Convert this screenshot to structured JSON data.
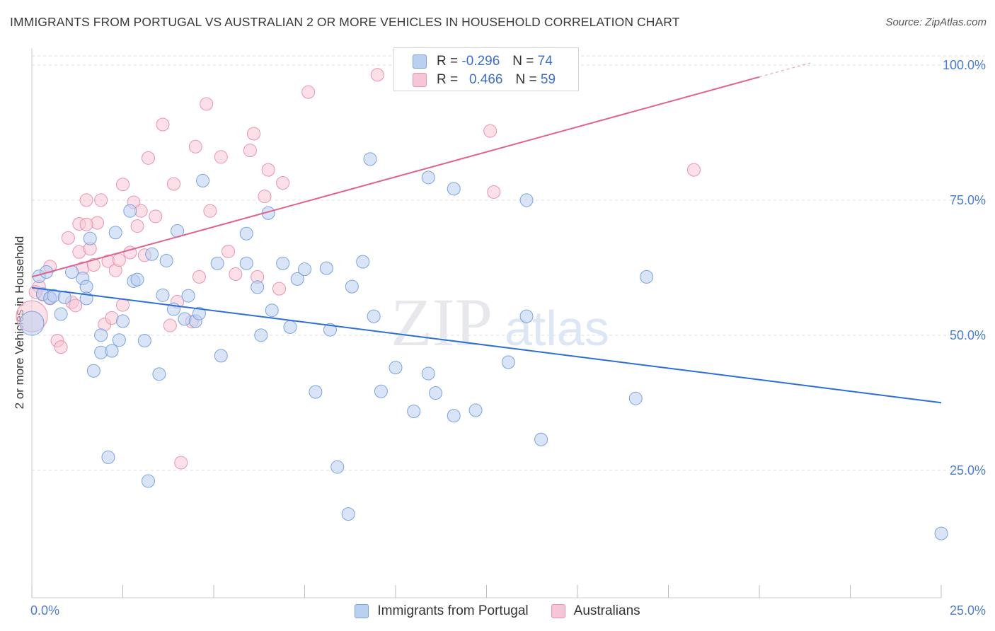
{
  "header": {
    "title": "IMMIGRANTS FROM PORTUGAL VS AUSTRALIAN 2 OR MORE VEHICLES IN HOUSEHOLD CORRELATION CHART",
    "source": "Source: ZipAtlas.com"
  },
  "watermark": {
    "zip": "ZIP",
    "atlas": "atlas"
  },
  "legend_top": {
    "rows": [
      {
        "r_label": "R =",
        "r_value": "-0.296",
        "n_label": "N =",
        "n_value": "74"
      },
      {
        "r_label": "R =",
        "r_value": "0.466",
        "n_label": "N =",
        "n_value": "59"
      }
    ]
  },
  "legend_bottom": {
    "items": [
      "Immigrants from Portugal",
      "Australians"
    ]
  },
  "colors": {
    "blue_fill": "#b9d0f1",
    "blue_stroke": "#7aa3e0",
    "blue_line": "#2e6fd4",
    "pink_fill": "#f7c6d6",
    "pink_stroke": "#ea93b0",
    "pink_line": "#e0628f",
    "tick_text": "#4a7ecf",
    "grid": "#dddddd"
  },
  "chart_data": {
    "type": "scatter",
    "title": "IMMIGRANTS FROM PORTUGAL VS AUSTRALIAN 2 OR MORE VEHICLES IN HOUSEHOLD CORRELATION CHART",
    "xlabel": "",
    "ylabel": "2 or more Vehicles in Household",
    "xlim": [
      0,
      25
    ],
    "ylim": [
      1.4,
      101.7
    ],
    "x_tick_labels": [
      "0.0%",
      "25.0%"
    ],
    "y_ticks": [
      25,
      50,
      75,
      100
    ],
    "y_tick_labels": [
      "25.0%",
      "50.0%",
      "75.0%",
      "100.0%"
    ],
    "grid": true,
    "legend": "top-center",
    "series": [
      {
        "name": "Immigrants from Portugal",
        "color": "#b9d0f1",
        "trend": {
          "x": [
            0,
            25
          ],
          "y": [
            58.8,
            37.5
          ]
        },
        "points": [
          [
            0.0,
            52.2
          ],
          [
            0.2,
            60.9
          ],
          [
            0.3,
            57.6
          ],
          [
            0.4,
            61.7
          ],
          [
            0.5,
            56.9
          ],
          [
            0.6,
            57.3
          ],
          [
            0.8,
            53.9
          ],
          [
            0.9,
            57.0
          ],
          [
            1.1,
            61.7
          ],
          [
            1.4,
            60.5
          ],
          [
            1.5,
            59.0
          ],
          [
            1.5,
            56.8
          ],
          [
            1.6,
            67.9
          ],
          [
            1.7,
            43.4
          ],
          [
            1.9,
            50.0
          ],
          [
            1.9,
            46.8
          ],
          [
            2.1,
            27.4
          ],
          [
            2.2,
            47.1
          ],
          [
            2.3,
            69.0
          ],
          [
            2.4,
            49.1
          ],
          [
            2.5,
            52.6
          ],
          [
            2.7,
            73.0
          ],
          [
            2.8,
            60.0
          ],
          [
            2.9,
            60.3
          ],
          [
            3.1,
            49.0
          ],
          [
            3.2,
            23.0
          ],
          [
            3.3,
            65.0
          ],
          [
            3.5,
            42.8
          ],
          [
            3.6,
            57.4
          ],
          [
            3.7,
            63.8
          ],
          [
            3.9,
            54.8
          ],
          [
            4.0,
            69.3
          ],
          [
            4.2,
            53.0
          ],
          [
            4.3,
            57.3
          ],
          [
            4.5,
            52.6
          ],
          [
            4.6,
            54.0
          ],
          [
            4.7,
            78.6
          ],
          [
            5.1,
            63.3
          ],
          [
            5.2,
            46.2
          ],
          [
            5.9,
            68.8
          ],
          [
            5.9,
            63.3
          ],
          [
            6.2,
            58.9
          ],
          [
            6.3,
            50.0
          ],
          [
            6.5,
            72.6
          ],
          [
            6.6,
            54.6
          ],
          [
            6.9,
            63.3
          ],
          [
            7.1,
            51.5
          ],
          [
            7.3,
            60.4
          ],
          [
            7.5,
            62.2
          ],
          [
            7.8,
            39.5
          ],
          [
            8.1,
            62.4
          ],
          [
            8.2,
            51.0
          ],
          [
            8.4,
            25.6
          ],
          [
            8.7,
            16.9
          ],
          [
            8.8,
            59.0
          ],
          [
            9.1,
            63.6
          ],
          [
            9.3,
            82.6
          ],
          [
            9.4,
            53.5
          ],
          [
            9.6,
            39.6
          ],
          [
            10.0,
            44.0
          ],
          [
            10.5,
            35.9
          ],
          [
            10.9,
            79.2
          ],
          [
            10.9,
            42.9
          ],
          [
            11.1,
            39.3
          ],
          [
            11.6,
            77.1
          ],
          [
            11.6,
            35.1
          ],
          [
            12.2,
            36.1
          ],
          [
            13.1,
            45.0
          ],
          [
            13.6,
            75.0
          ],
          [
            13.6,
            53.5
          ],
          [
            14.0,
            30.7
          ],
          [
            16.6,
            38.3
          ],
          [
            16.9,
            60.8
          ],
          [
            25.0,
            13.3
          ]
        ]
      },
      {
        "name": "Australians",
        "color": "#f7c6d6",
        "trend": {
          "x": [
            0,
            20
          ],
          "y": [
            60.8,
            97.8
          ]
        },
        "points": [
          [
            0.0,
            53.5
          ],
          [
            0.2,
            59.0
          ],
          [
            0.3,
            57.5
          ],
          [
            0.5,
            62.7
          ],
          [
            0.5,
            56.8
          ],
          [
            0.7,
            49.0
          ],
          [
            0.8,
            47.8
          ],
          [
            1.0,
            68.0
          ],
          [
            1.1,
            56.1
          ],
          [
            1.2,
            55.5
          ],
          [
            1.3,
            65.4
          ],
          [
            1.3,
            70.6
          ],
          [
            1.4,
            62.4
          ],
          [
            1.5,
            75.0
          ],
          [
            1.6,
            66.0
          ],
          [
            1.7,
            63.0
          ],
          [
            1.8,
            70.8
          ],
          [
            1.9,
            75.0
          ],
          [
            2.0,
            52.0
          ],
          [
            2.1,
            63.7
          ],
          [
            2.2,
            53.2
          ],
          [
            2.3,
            62.0
          ],
          [
            2.4,
            63.9
          ],
          [
            2.5,
            77.9
          ],
          [
            2.5,
            55.6
          ],
          [
            2.7,
            65.3
          ],
          [
            2.8,
            74.6
          ],
          [
            2.9,
            70.2
          ],
          [
            3.0,
            73.0
          ],
          [
            3.1,
            64.8
          ],
          [
            3.2,
            82.8
          ],
          [
            3.4,
            72.0
          ],
          [
            3.6,
            89.0
          ],
          [
            3.8,
            51.8
          ],
          [
            3.9,
            78.0
          ],
          [
            4.0,
            56.2
          ],
          [
            4.1,
            26.4
          ],
          [
            4.4,
            52.5
          ],
          [
            4.5,
            84.9
          ],
          [
            4.6,
            60.8
          ],
          [
            4.8,
            92.8
          ],
          [
            4.9,
            73.0
          ],
          [
            5.2,
            83.0
          ],
          [
            5.4,
            65.5
          ],
          [
            5.6,
            61.3
          ],
          [
            6.0,
            84.2
          ],
          [
            6.1,
            87.3
          ],
          [
            6.2,
            60.8
          ],
          [
            6.4,
            75.7
          ],
          [
            6.5,
            80.6
          ],
          [
            6.8,
            58.6
          ],
          [
            6.9,
            78.2
          ],
          [
            7.6,
            95.0
          ],
          [
            9.5,
            98.2
          ],
          [
            12.6,
            87.8
          ],
          [
            12.7,
            76.5
          ],
          [
            18.2,
            80.6
          ],
          [
            0.1,
            58.0
          ],
          [
            1.5,
            70.5
          ]
        ]
      }
    ]
  }
}
